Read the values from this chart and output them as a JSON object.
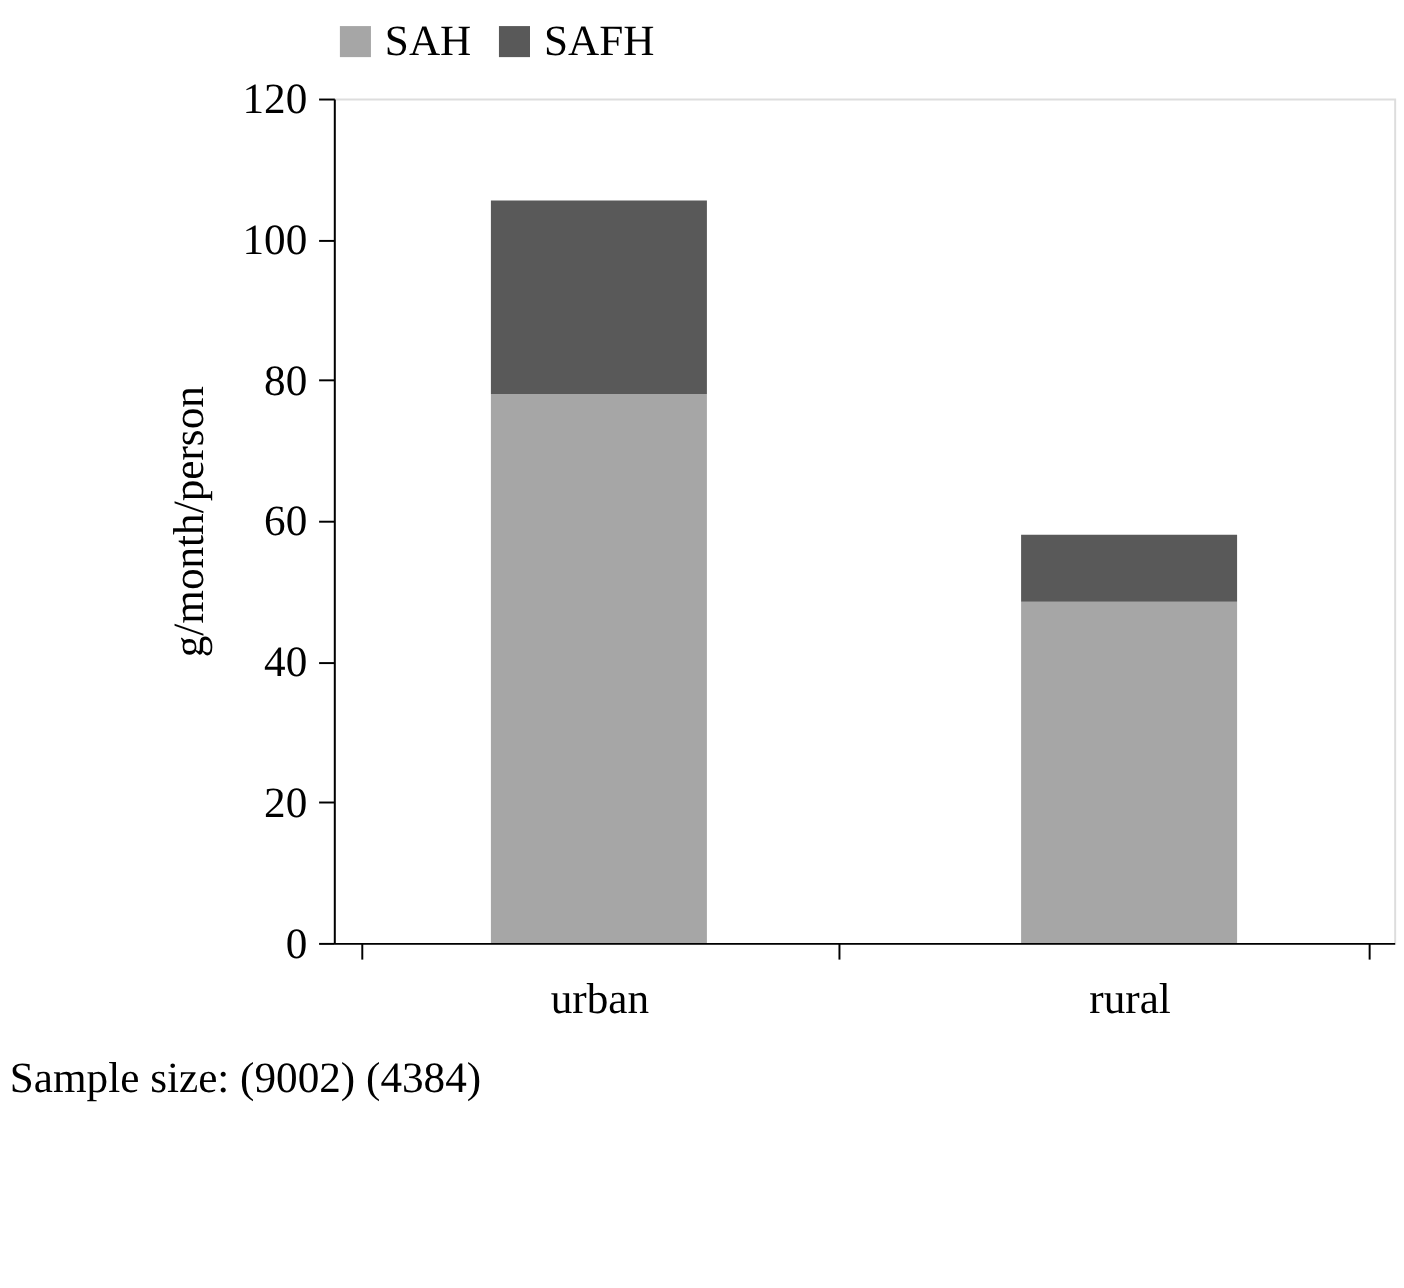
{
  "chart_data": {
    "type": "bar",
    "stacked": true,
    "categories": [
      "urban",
      "rural"
    ],
    "ylabel": "g/month/person",
    "series": [
      {
        "name": "SAH",
        "color": "#a6a6a6",
        "values": [
          78,
          48.5
        ]
      },
      {
        "name": "SAFH",
        "color": "#595959",
        "values": [
          27.5,
          9.5
        ]
      }
    ],
    "ylim": [
      0,
      120
    ],
    "yticks": [
      0,
      20,
      40,
      60,
      80,
      100,
      120
    ],
    "grid": false,
    "legend": "top",
    "annotations": [
      "Sample size: (9002) (4384)"
    ]
  }
}
